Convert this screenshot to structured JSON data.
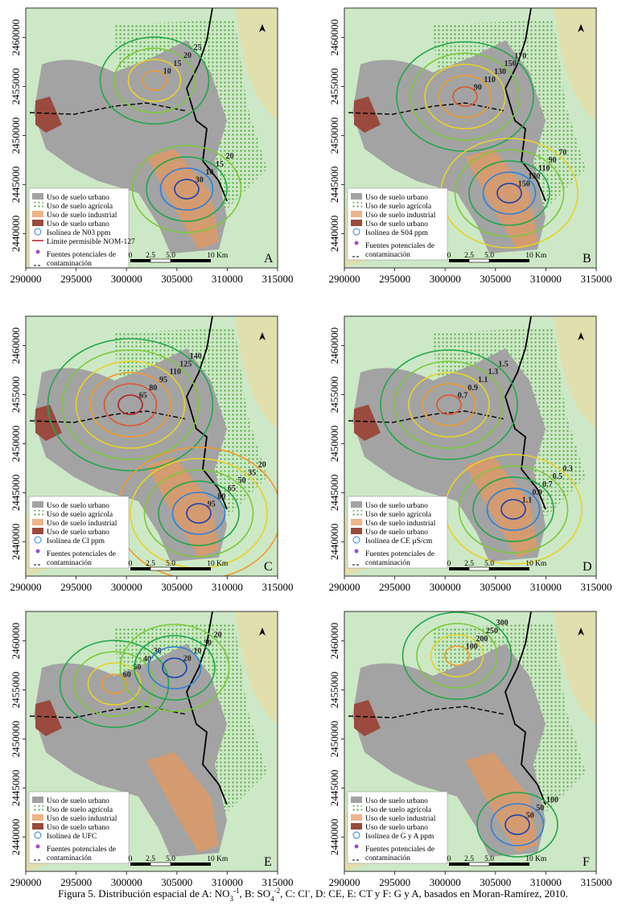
{
  "xlim": [
    290000,
    315000
  ],
  "ylim": [
    2436500,
    2463000
  ],
  "x_ticks": [
    290000,
    295000,
    300000,
    305000,
    310000,
    315000
  ],
  "y_ticks": [
    2440000,
    2445000,
    2450000,
    2455000,
    2460000
  ],
  "scale_labels": [
    "0",
    "2.5",
    "5.0",
    "10",
    "Km"
  ],
  "panels": [
    {
      "letter": "A",
      "legend": [
        "Uso de suelo urbano",
        "Uso de suelo agrícola",
        "Uso de suelo industrial",
        "Uso de suelo urbano",
        "Isolinea de N03 ppm",
        "Límite permisible NOM-127"
      ],
      "sources": [
        "Fuentes potenciales de",
        "contaminación"
      ],
      "isolines": [
        10,
        15,
        20,
        25,
        30,
        10,
        15,
        20
      ]
    },
    {
      "letter": "B",
      "legend": [
        "Uso de suelo urbano",
        "Uso de suelo agrícola",
        "Uso de suelo industrial",
        "Uso de suelo urbano",
        "Isolinea de S04 ppm"
      ],
      "sources": [
        "Fuentes potenciales de",
        "contaminación"
      ],
      "isolines": [
        90,
        110,
        130,
        150,
        170,
        150,
        130,
        110,
        90,
        70
      ]
    },
    {
      "letter": "C",
      "legend": [
        "Uso de suelo urbano",
        "Uso de suelo agrícola",
        "Uso de suelo industrial",
        "Uso de suelo urbano",
        "Isolinea de Cl ppm"
      ],
      "sources": [
        "Fuentes potenciales de",
        "contaminación"
      ],
      "isolines": [
        65,
        80,
        95,
        110,
        125,
        140,
        95,
        80,
        65,
        50,
        35,
        20
      ]
    },
    {
      "letter": "D",
      "legend": [
        "Uso de suelo urbano",
        "Uso de suelo agrícola",
        "Uso de suelo industrial",
        "Uso de suelo urbano",
        "Isolinea de CE  µS/cm"
      ],
      "sources": [
        "Fuentes potenciales de",
        "contaminación"
      ],
      "isolines": [
        0.7,
        0.9,
        1.1,
        1.3,
        1.5,
        1.1,
        0.9,
        0.7,
        0.5,
        0.3
      ]
    },
    {
      "letter": "E",
      "legend": [
        "Uso de suelo urbano",
        "Uso de suelo agrícola",
        "Uso de suelo industrial",
        "Uso de suelo urbano",
        "Isolinea de UFC"
      ],
      "sources": [
        "Fuentes potenciales de",
        "contaminación"
      ],
      "isolines": [
        60,
        50,
        40,
        30,
        20,
        10,
        30,
        20
      ]
    },
    {
      "letter": "F",
      "legend": [
        "Uso de suelo urbano",
        "Uso de suelo agrícola",
        "Uso de suelo industrial",
        "Uso de suelo urbano",
        "Isolinea de G y A ppm"
      ],
      "sources": [
        "Fuentes potenciales de",
        "contaminación"
      ],
      "isolines": [
        100,
        200,
        250,
        300,
        50,
        50,
        100
      ]
    }
  ],
  "caption": [
    "Figura 5. Distribución espacial de A: NO",
    "3",
    "-1",
    ", B: SO",
    "4",
    "-2",
    ", C: Cl",
    "-",
    ", D: CE, E: CT y F: G y A, basados en Moran-Ramírez, 2010."
  ]
}
